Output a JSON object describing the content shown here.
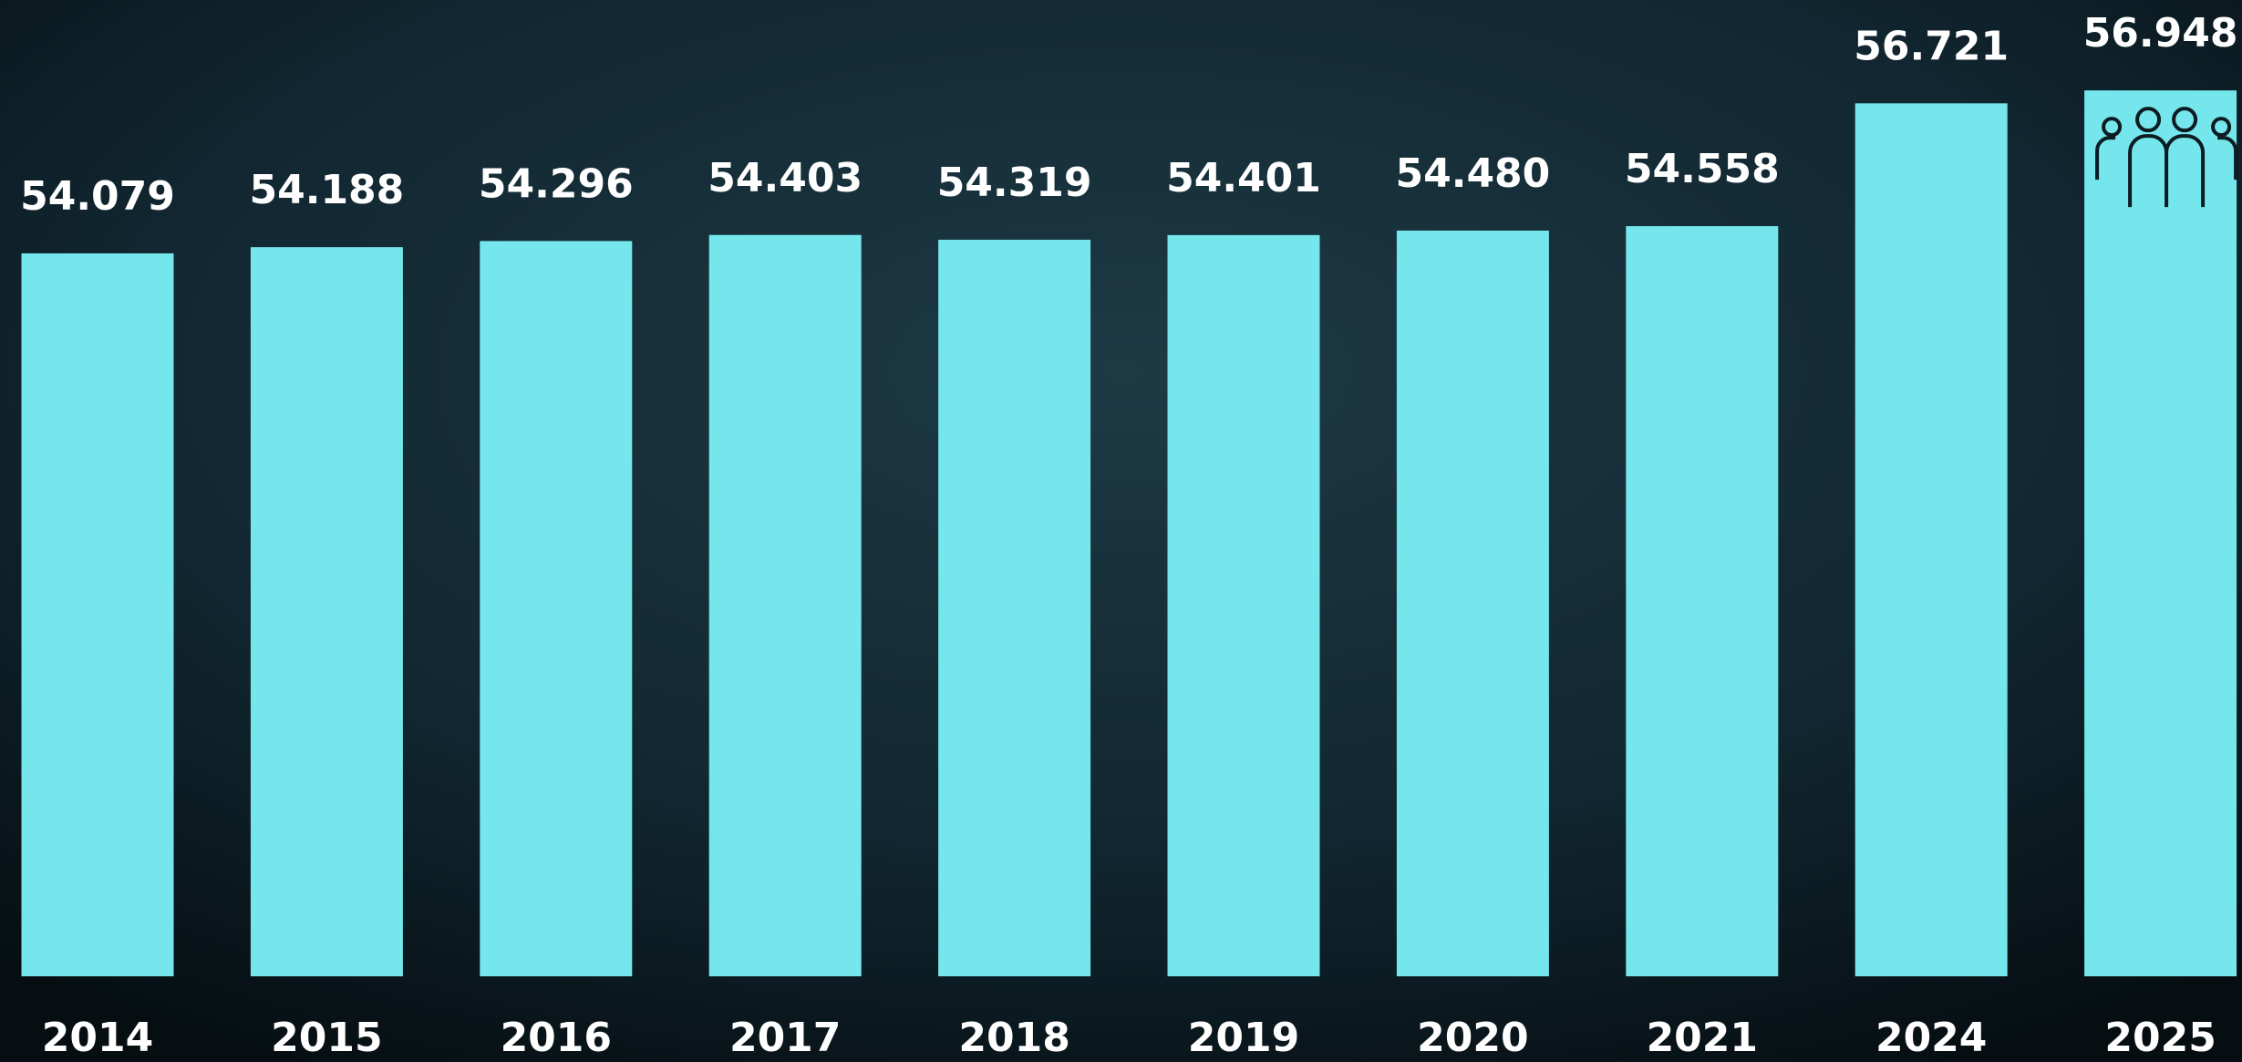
{
  "chart_data": {
    "type": "bar",
    "categories": [
      "2014",
      "2015",
      "2016",
      "2017",
      "2018",
      "2019",
      "2020",
      "2021",
      "2024",
      "2025"
    ],
    "values": [
      54.079,
      54.188,
      54.296,
      54.403,
      54.319,
      54.401,
      54.48,
      54.558,
      56.721,
      56.948
    ],
    "value_labels": [
      "54.079",
      "54.188",
      "54.296",
      "54.403",
      "54.319",
      "54.401",
      "54.480",
      "54.558",
      "56.721",
      "56.948"
    ],
    "color": "#74e6ec",
    "ylim": [
      41.35,
      58.54
    ]
  }
}
